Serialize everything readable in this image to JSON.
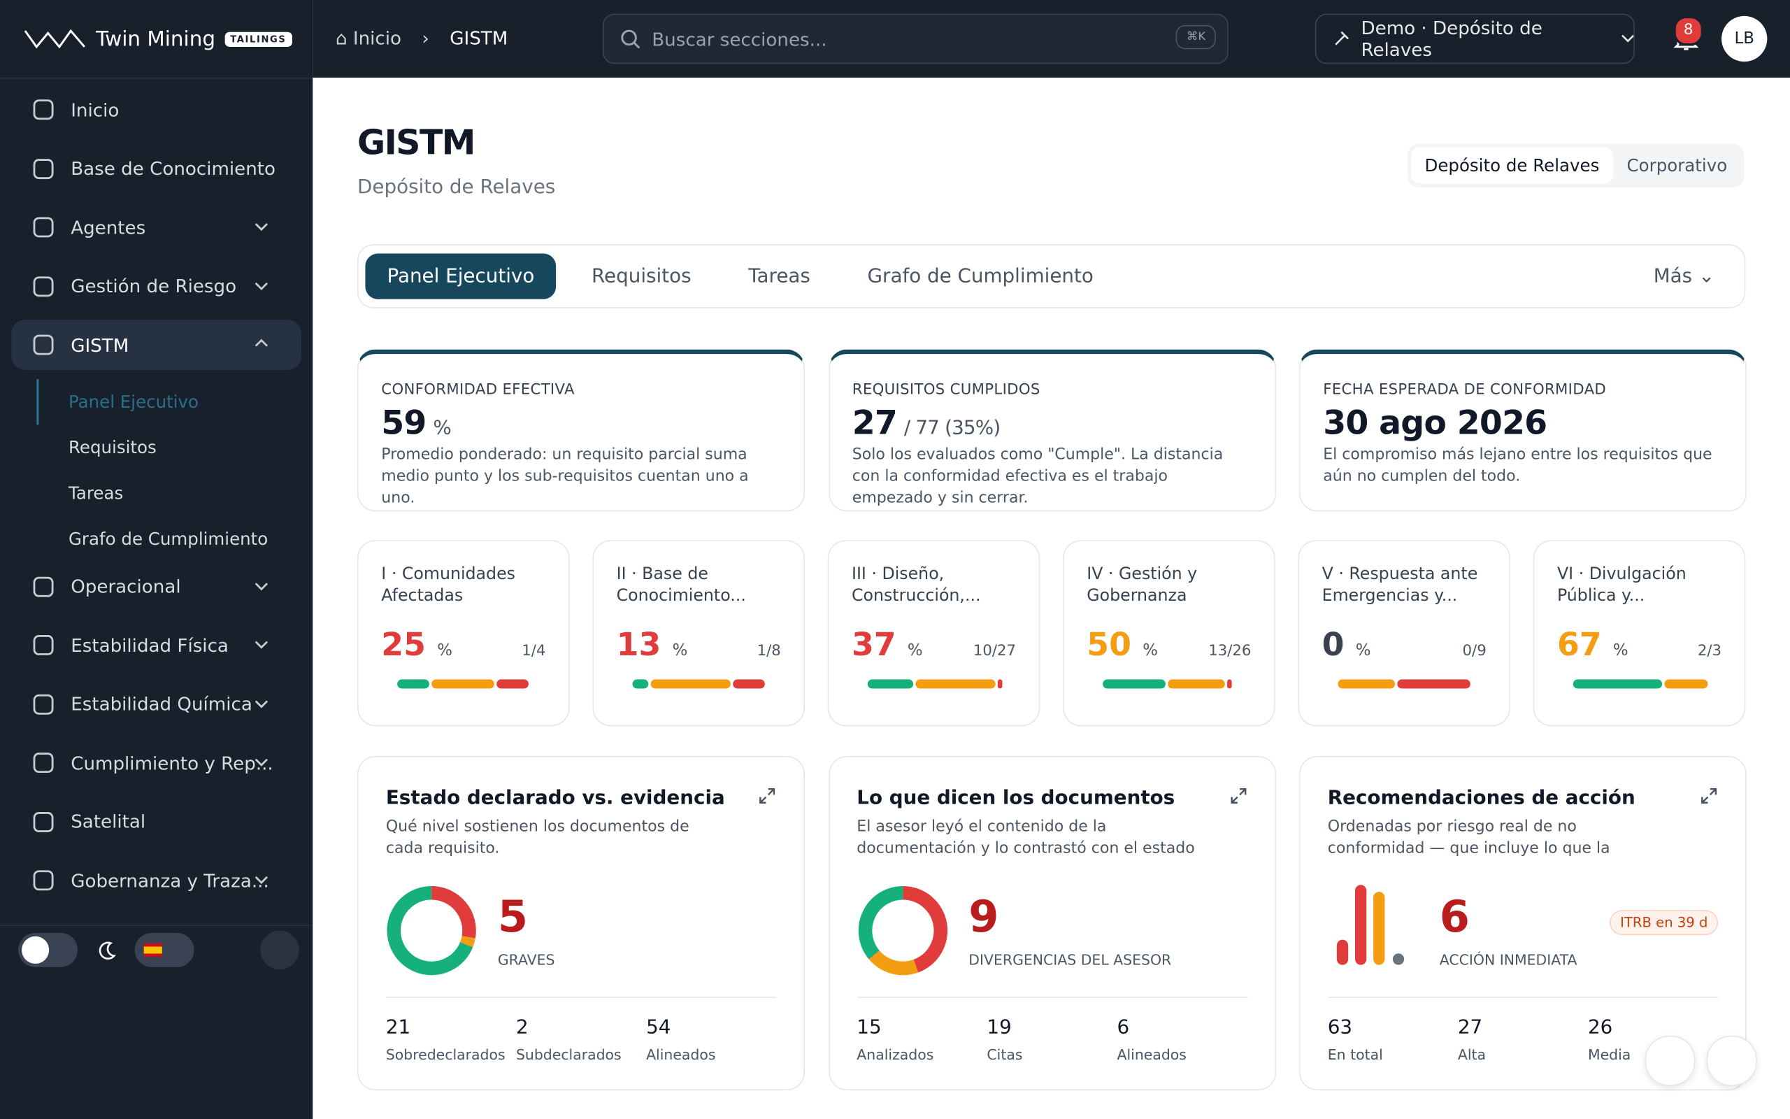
{
  "brand": {
    "name": "Twin Mining",
    "badge": "TAILINGS"
  },
  "breadcrumb": [
    "Inicio",
    "GISTM"
  ],
  "search": {
    "placeholder": "Buscar secciones...",
    "shortcut": "⌘K"
  },
  "site_selector": "Demo · Depósito de Relaves",
  "notifications": "8",
  "avatar": "LB",
  "sidebar": {
    "items": [
      {
        "label": "Inicio",
        "chevron": false
      },
      {
        "label": "Base de Conocimiento",
        "chevron": false
      },
      {
        "label": "Agentes",
        "chevron": true
      },
      {
        "label": "Gestión de Riesgo",
        "chevron": true
      },
      {
        "label": "GISTM",
        "chevron": true,
        "active": true
      },
      {
        "label": "Operacional",
        "chevron": true
      },
      {
        "label": "Estabilidad Física",
        "chevron": true
      },
      {
        "label": "Estabilidad Química",
        "chevron": true
      },
      {
        "label": "Cumplimiento y Rep...",
        "chevron": true
      },
      {
        "label": "Satelital",
        "chevron": false
      },
      {
        "label": "Gobernanza y Traza...",
        "chevron": true
      }
    ],
    "sub_items": [
      "Panel Ejecutivo",
      "Requisitos",
      "Tareas",
      "Grafo de Cumplimiento"
    ]
  },
  "page": {
    "title": "GISTM",
    "subtitle": "Depósito de Relaves",
    "scope_toggle": [
      "Depósito de Relaves",
      "Corporativo"
    ],
    "tabs": [
      "Panel Ejecutivo",
      "Requisitos",
      "Tareas",
      "Grafo de Cumplimiento"
    ],
    "more": "Más"
  },
  "kpis": [
    {
      "label": "CONFORMIDAD EFECTIVA",
      "value": "59",
      "suffix": "%",
      "description": "Promedio ponderado: un requisito parcial suma medio punto y los sub-requisitos cuentan uno a uno."
    },
    {
      "label": "REQUISITOS CUMPLIDOS",
      "value": "27",
      "suffix": "/ 77 (35%)",
      "description": "Solo los evaluados como \"Cumple\". La distancia con la conformidad efectiva es el trabajo empezado y sin cerrar."
    },
    {
      "label": "FECHA ESPERADA DE CONFORMIDAD",
      "value": "30 ago 2026",
      "description": "El compromiso más lejano entre los requisitos que aún no cumplen del todo."
    }
  ],
  "principles": [
    {
      "label": "I · Comunidades Afectadas",
      "value": "25",
      "unit": "%",
      "ratio": "1/4",
      "color": "#e03c3c"
    },
    {
      "label": "II · Base de Conocimiento...",
      "value": "13",
      "unit": "%",
      "ratio": "1/8",
      "color": "#e03c3c"
    },
    {
      "label": "III · Diseño, Construcción,...",
      "value": "37",
      "unit": "%",
      "ratio": "10/27",
      "color": "#e03c3c"
    },
    {
      "label": "IV · Gestión y Gobernanza",
      "value": "50",
      "unit": "%",
      "ratio": "13/26",
      "color": "#f29d12"
    },
    {
      "label": "V · Respuesta ante Emergencias y...",
      "value": "0",
      "unit": "%",
      "ratio": "0/9",
      "color": "#3a4250"
    },
    {
      "label": "VI · Divulgación Pública y...",
      "value": "67",
      "unit": "%",
      "ratio": "2/3",
      "color": "#f29d12"
    }
  ],
  "insights": [
    {
      "title": "Estado declarado vs. evidencia",
      "description": "Qué nivel sostienen los documentos de cada requisito.",
      "big": "5",
      "big_label": "GRAVES",
      "stats": [
        {
          "value": "21",
          "label": "Sobredeclarados"
        },
        {
          "value": "2",
          "label": "Subdeclarados"
        },
        {
          "value": "54",
          "label": "Alineados"
        }
      ]
    },
    {
      "title": "Lo que dicen los documentos",
      "description": "El asesor leyó el contenido de la documentación y lo contrastó con el estado declarado. A diferencia...",
      "big": "9",
      "big_label": "DIVERGENCIAS DEL ASESOR",
      "stats": [
        {
          "value": "15",
          "label": "Analizados"
        },
        {
          "value": "19",
          "label": "Citas"
        },
        {
          "value": "6",
          "label": "Alineados"
        }
      ]
    },
    {
      "title": "Recomendaciones de acción",
      "description": "Ordenadas por riesgo real de no conformidad — que incluye lo que la evidencia no sostiene, no sol...",
      "big": "6",
      "big_label": "ACCIÓN INMEDIATA",
      "badge": "ITRB en 39 d",
      "stats": [
        {
          "value": "63",
          "label": "En total"
        },
        {
          "value": "27",
          "label": "Alta"
        },
        {
          "value": "26",
          "label": "Media"
        }
      ]
    }
  ]
}
